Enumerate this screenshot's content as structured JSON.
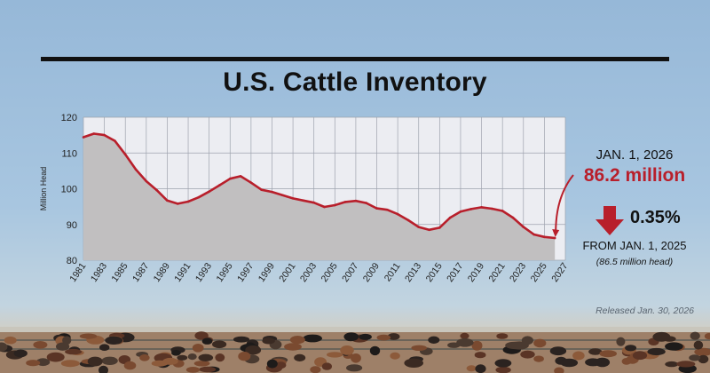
{
  "title": "U.S. Cattle Inventory",
  "chart_data": {
    "type": "area",
    "title": "U.S. Cattle Inventory",
    "ylabel": "Million Head",
    "xlabel": "",
    "xlim": [
      1981,
      2027
    ],
    "ylim": [
      80,
      120
    ],
    "yticks": [
      80,
      90,
      100,
      110,
      120
    ],
    "xticks": [
      1981,
      1983,
      1985,
      1987,
      1989,
      1991,
      1993,
      1995,
      1997,
      1999,
      2001,
      2003,
      2005,
      2007,
      2009,
      2011,
      2013,
      2015,
      2017,
      2019,
      2021,
      2023,
      2025,
      2027
    ],
    "grid": true,
    "x": [
      1981,
      1982,
      1983,
      1984,
      1985,
      1986,
      1987,
      1988,
      1989,
      1990,
      1991,
      1992,
      1993,
      1994,
      1995,
      1996,
      1997,
      1998,
      1999,
      2000,
      2001,
      2002,
      2003,
      2004,
      2005,
      2006,
      2007,
      2008,
      2009,
      2010,
      2011,
      2012,
      2013,
      2014,
      2015,
      2016,
      2017,
      2018,
      2019,
      2020,
      2021,
      2022,
      2023,
      2024,
      2025,
      2026
    ],
    "values": [
      114.4,
      115.4,
      115.0,
      113.4,
      109.6,
      105.4,
      102.1,
      99.6,
      96.7,
      95.8,
      96.4,
      97.6,
      99.2,
      101.0,
      102.8,
      103.5,
      101.7,
      99.7,
      99.1,
      98.2,
      97.3,
      96.7,
      96.1,
      94.9,
      95.4,
      96.3,
      96.6,
      96.0,
      94.5,
      94.1,
      92.9,
      91.2,
      89.3,
      88.5,
      89.1,
      91.9,
      93.6,
      94.3,
      94.8,
      94.4,
      93.8,
      91.9,
      89.3,
      87.2,
      86.5,
      86.2
    ],
    "colors": {
      "line": "#b81f2b",
      "area": "#c1bfc0",
      "plot_bg": "#ecedf2",
      "grid": "#9ea3ae"
    }
  },
  "callout": {
    "date": "JAN. 1, 2026",
    "value": "86.2 million",
    "change": "0.35%",
    "direction_icon": "down-arrow-icon",
    "from": "FROM JAN. 1, 2025",
    "prev": "(86.5 million head)"
  },
  "footer": {
    "released": "Released Jan. 30, 2026"
  }
}
